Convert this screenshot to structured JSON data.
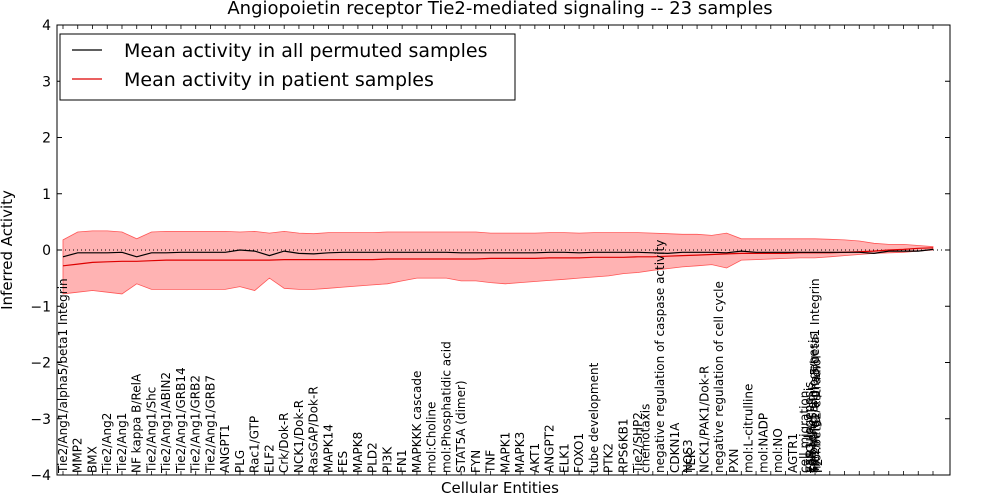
{
  "chart_data": {
    "type": "line",
    "title": "Angiopoietin receptor Tie2-mediated signaling -- 23 samples",
    "xlabel": "Cellular Entities",
    "ylabel": "Inferred Activity",
    "ylim": [
      -4,
      4
    ],
    "yticks": [
      -4,
      -3,
      -2,
      -1,
      0,
      1,
      2,
      3,
      4
    ],
    "legend": {
      "placement": "top-left",
      "entries": [
        "Mean activity in all permuted samples",
        "Mean activity in patient samples"
      ]
    },
    "colors": {
      "permuted": "#000000",
      "patient": "#dd0000",
      "band": "#ff9999",
      "band_edge": "#ff5555",
      "zero_line": "#000000"
    },
    "categories": [
      "Tie2/Ang1/alpha5/beta1 Integrin",
      "MMP2",
      "BMX",
      "Tie2/Ang2",
      "Tie2/Ang1",
      "NF kappa B/RelA",
      "Tie2/Ang1/Shc",
      "Tie2/Ang1/ABIN2",
      "Tie2/Ang1/GRB14",
      "Tie2/Ang1/GRB2",
      "Tie2/Ang1/GRB7",
      "ANGPT1",
      "PLG",
      "Rac1/GTP",
      "ELF2",
      "Crk/Dok-R",
      "NCK1/Dok-R",
      "RasGAP/Dok-R",
      "MAPK14",
      "FES",
      "MAPK8",
      "PLD2",
      "PI3K",
      "FN1",
      "MAPKKK cascade",
      "mol:Choline",
      "mol:Phosphatidic acid",
      "STAT5A (dimer)",
      "FYN",
      "TNF",
      "MAPK1",
      "MAPK3",
      "AKT1",
      "ANGPT2",
      "ELK1",
      "FOXO1",
      "tube development",
      "PTK2",
      "RPS6KB1",
      "Tie2/SHP2",
      "chemotaxis",
      "negative regulation of caspase activity",
      "CDKN1A",
      "NOS3",
      "TEK",
      "NCK1/PAK1/Dok-R",
      "negative regulation of cell cycle",
      "PXN",
      "mol:L-citrulline",
      "mol:NADP",
      "mol:NO",
      "AGTR1",
      "cell migration",
      "vasculogenesis",
      "cell adhesion",
      "mol:beta2-estradiol",
      "sprouting angiogenesis",
      "Tie2/Ang1/alpha5/beta1 Integrin",
      "F2",
      "ESR1"
    ],
    "label_positions": [
      0,
      1,
      2,
      3,
      4,
      5,
      6,
      7,
      8,
      9,
      10,
      11,
      12,
      13,
      14,
      15,
      16,
      17,
      18,
      19,
      20,
      21,
      22,
      23,
      24,
      25,
      26,
      27,
      28,
      29,
      30,
      31,
      32,
      33,
      34,
      35,
      36,
      37,
      38,
      39,
      39.5,
      40.5,
      41.5,
      42.4,
      42.6,
      43.5,
      44.5,
      45.5,
      46.5,
      47.5,
      48.5,
      49.5,
      50.3,
      50.6,
      50.8,
      51.1,
      50.9,
      51.0,
      51.2,
      50.7
    ],
    "series": [
      {
        "name": "Mean activity in patient samples",
        "values": [
          -0.28,
          -0.25,
          -0.22,
          -0.21,
          -0.2,
          -0.2,
          -0.19,
          -0.18,
          -0.18,
          -0.18,
          -0.18,
          -0.18,
          -0.18,
          -0.18,
          -0.18,
          -0.17,
          -0.17,
          -0.17,
          -0.17,
          -0.17,
          -0.17,
          -0.17,
          -0.16,
          -0.16,
          -0.16,
          -0.16,
          -0.16,
          -0.16,
          -0.16,
          -0.15,
          -0.15,
          -0.15,
          -0.15,
          -0.14,
          -0.14,
          -0.14,
          -0.13,
          -0.13,
          -0.13,
          -0.12,
          -0.12,
          -0.11,
          -0.1,
          -0.09,
          -0.08,
          -0.07,
          -0.06,
          -0.06,
          -0.06,
          -0.06,
          -0.05,
          -0.05,
          -0.05,
          -0.04,
          -0.03,
          -0.02,
          0.0,
          0.01,
          0.03,
          0.04
        ]
      },
      {
        "name": "Mean activity in all permuted samples",
        "values": [
          -0.12,
          -0.05,
          -0.05,
          -0.05,
          -0.04,
          -0.12,
          -0.05,
          -0.05,
          -0.04,
          -0.04,
          -0.04,
          -0.04,
          0.0,
          -0.02,
          -0.1,
          -0.02,
          -0.06,
          -0.07,
          -0.05,
          -0.04,
          -0.04,
          -0.04,
          -0.04,
          -0.04,
          -0.04,
          -0.04,
          -0.04,
          -0.05,
          -0.05,
          -0.05,
          -0.05,
          -0.05,
          -0.05,
          -0.04,
          -0.04,
          -0.05,
          -0.04,
          -0.04,
          -0.04,
          -0.04,
          -0.05,
          -0.06,
          -0.04,
          -0.04,
          -0.04,
          -0.05,
          -0.02,
          -0.04,
          -0.04,
          -0.04,
          -0.04,
          -0.04,
          -0.04,
          -0.04,
          -0.04,
          -0.06,
          -0.02,
          -0.02,
          -0.02,
          0.01
        ]
      }
    ],
    "band": {
      "name": "patient sample range",
      "upper": [
        0.18,
        0.32,
        0.34,
        0.34,
        0.32,
        0.2,
        0.32,
        0.33,
        0.33,
        0.33,
        0.33,
        0.33,
        0.32,
        0.33,
        0.3,
        0.33,
        0.3,
        0.29,
        0.31,
        0.31,
        0.31,
        0.31,
        0.32,
        0.32,
        0.32,
        0.32,
        0.32,
        0.32,
        0.32,
        0.3,
        0.3,
        0.3,
        0.3,
        0.31,
        0.31,
        0.3,
        0.31,
        0.31,
        0.31,
        0.31,
        0.3,
        0.29,
        0.28,
        0.28,
        0.26,
        0.3,
        0.2,
        0.2,
        0.2,
        0.2,
        0.2,
        0.2,
        0.19,
        0.18,
        0.16,
        0.12,
        0.1,
        0.1,
        0.08,
        0.06
      ],
      "lower": [
        -0.78,
        -0.75,
        -0.72,
        -0.75,
        -0.78,
        -0.6,
        -0.7,
        -0.7,
        -0.7,
        -0.7,
        -0.7,
        -0.7,
        -0.65,
        -0.72,
        -0.5,
        -0.68,
        -0.7,
        -0.7,
        -0.68,
        -0.66,
        -0.64,
        -0.62,
        -0.6,
        -0.55,
        -0.5,
        -0.5,
        -0.5,
        -0.55,
        -0.55,
        -0.58,
        -0.6,
        -0.58,
        -0.56,
        -0.54,
        -0.52,
        -0.5,
        -0.48,
        -0.46,
        -0.42,
        -0.4,
        -0.36,
        -0.33,
        -0.3,
        -0.28,
        -0.26,
        -0.32,
        -0.18,
        -0.17,
        -0.16,
        -0.15,
        -0.14,
        -0.14,
        -0.12,
        -0.1,
        -0.08,
        -0.06,
        -0.05,
        -0.04,
        -0.02,
        0.0
      ]
    }
  }
}
